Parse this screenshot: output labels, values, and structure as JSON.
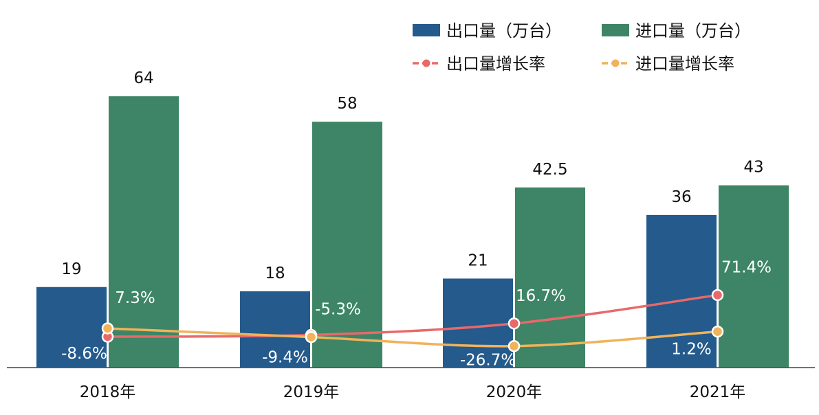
{
  "chart_data": {
    "type": "bar",
    "categories": [
      "2018年",
      "2019年",
      "2020年",
      "2021年"
    ],
    "series": [
      {
        "name": "出口量（万台）",
        "kind": "bar",
        "color": "#245a8c",
        "values": [
          19,
          18,
          21,
          36
        ],
        "labels": [
          "19",
          "18",
          "21",
          "36"
        ]
      },
      {
        "name": "进口量（万台）",
        "kind": "bar",
        "color": "#3d8566",
        "values": [
          64,
          58,
          42.5,
          43
        ],
        "labels": [
          "64",
          "58",
          "42.5",
          "43"
        ]
      },
      {
        "name": "出口量增长率",
        "kind": "line",
        "color": "#e8696a",
        "values": [
          -8.6,
          -5.3,
          16.7,
          71.4
        ],
        "labels": [
          "-8.6%",
          "-5.3%",
          "16.7%",
          "71.4%"
        ]
      },
      {
        "name": "进口量增长率",
        "kind": "line",
        "color": "#f0b35a",
        "values": [
          7.3,
          -9.4,
          -26.7,
          1.2
        ],
        "labels": [
          "7.3%",
          "-9.4%",
          "-26.7%",
          "1.2%"
        ]
      }
    ],
    "legend_position": "top-right",
    "bar_ylim": [
      0,
      70
    ],
    "rate_ylim": [
      -100,
      400
    ],
    "grid": false
  }
}
